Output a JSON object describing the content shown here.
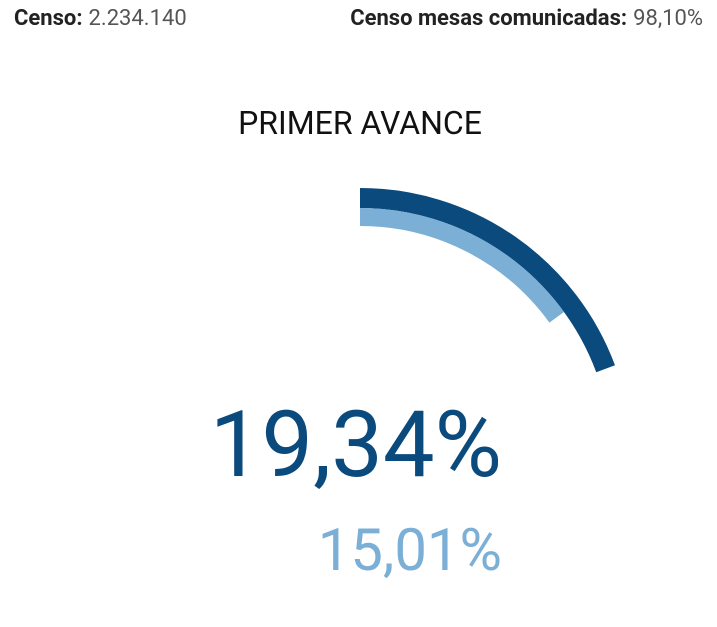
{
  "header": {
    "items": [
      {
        "label": "Censo:",
        "value": "2.234.140"
      },
      {
        "label": "Censo mesas comunicadas:",
        "value": "98,10%"
      }
    ]
  },
  "chart_data": {
    "type": "radial-gauge",
    "title": "PRIMER AVANCE",
    "values": [
      19.34,
      15.01
    ],
    "value_labels": [
      "19,34%",
      "15,01%"
    ],
    "colors": [
      "#0b4a7d",
      "#7bafd6"
    ],
    "ylim": [
      0,
      100
    ]
  }
}
